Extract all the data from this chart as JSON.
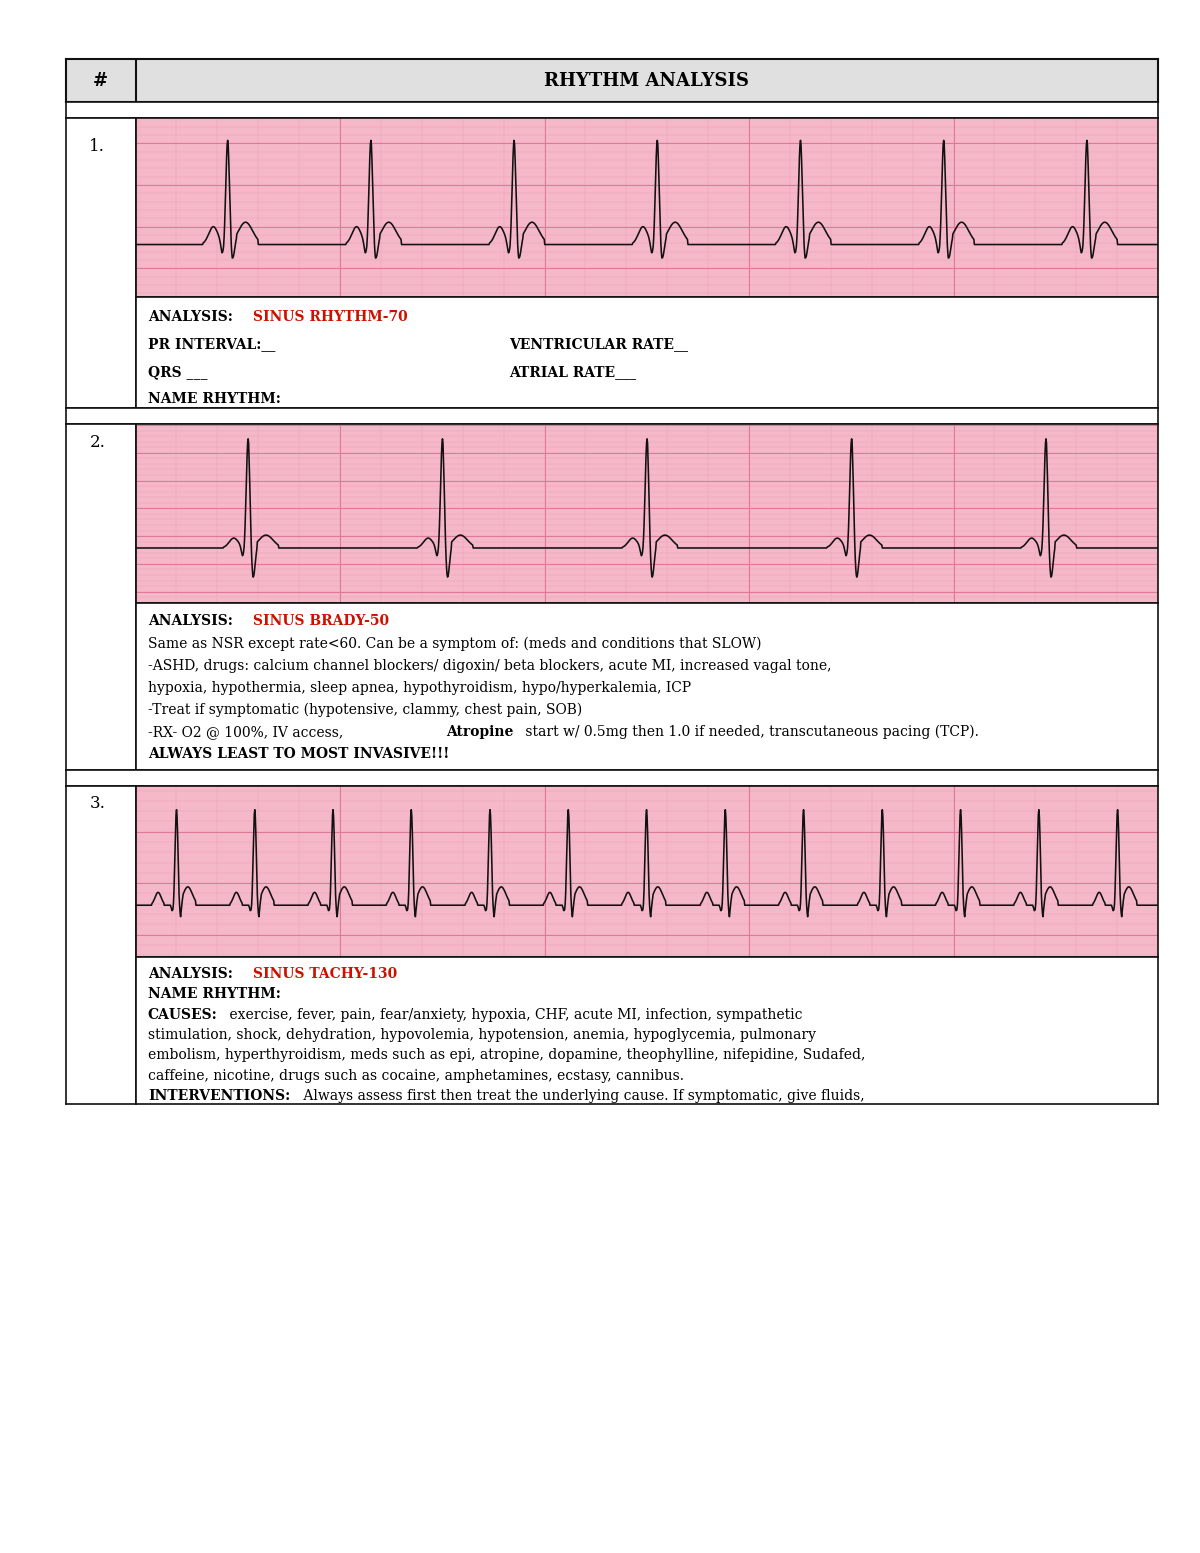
{
  "title": "RHYTHM ANALYSIS",
  "header_col_label": "#",
  "bg_color": "#ffffff",
  "ekg_bg": "#f5b8c8",
  "grid_minor_color": "#f0a0b8",
  "grid_major_color": "#e07898",
  "ekg_line_color": "#111111",
  "red_color": "#cc1100",
  "border_color": "#111111",
  "page_bg": "#f0f0f0",
  "header_bg": "#e0e0e0",
  "font_size_header": 13,
  "font_size_text": 10,
  "font_size_num": 12,
  "row1_analysis_red": "SINUS RHYTHM-70",
  "row1_lines": [
    [
      "bold",
      "ANALYSIS: ",
      "red",
      "SINUS RHYTHM-70"
    ],
    [
      "bold",
      "PR INTERVAL:__",
      "normal",
      "          VENTRICULAR RATE__"
    ],
    [
      "bold",
      "QRS ___",
      "normal",
      "                   ATRIAL RATE___"
    ],
    [
      "bold",
      "NAME RHYTHM:",
      "normal",
      ""
    ]
  ],
  "row2_analysis_red": "SINUS BRADY-50",
  "row2_lines": [
    [
      "bold",
      "ANALYSIS: ",
      "red",
      "SINUS BRADY-50"
    ],
    [
      "normal",
      "Same as NSR except rate<60. Can be a symptom of: (meds and conditions that SLOW)"
    ],
    [
      "normal",
      "-ASHD, drugs: calcium channel blockers/ digoxin/ beta blockers, acute MI, increased vagal tone,"
    ],
    [
      "normal",
      "hypoxia, hypothermia, sleep apnea, hypothyroidism, hypo/hyperkalemia, ICP"
    ],
    [
      "normal",
      "-Treat if symptomatic (hypotensive, clammy, chest pain, SOB)"
    ],
    [
      "normal",
      "-RX- O2 @ 100%, IV access, ",
      "bold",
      "Atropine",
      "normal",
      " start w/ 0.5mg then 1.0 if needed, transcutaneous pacing (TCP)."
    ],
    [
      "bold",
      "ALWAYS LEAST TO MOST INVASIVE!!!"
    ]
  ],
  "row3_analysis_red": "SINUS TACHY-130",
  "row3_lines": [
    [
      "bold",
      "ANALYSIS: ",
      "red",
      "SINUS TACHY-130"
    ],
    [
      "bold",
      "NAME RHYTHM:"
    ],
    [
      "bold",
      "CAUSES:",
      "normal",
      " exercise, fever, pain, fear/anxiety, hypoxia, CHF, acute MI, infection, sympathetic"
    ],
    [
      "normal",
      "stimulation, shock, dehydration, hypovolemia, hypotension, anemia, hypoglycemia, pulmonary"
    ],
    [
      "normal",
      "embolism, hyperthyroidism, meds such as epi, atropine, dopamine, theophylline, nifepidine, Sudafed,"
    ],
    [
      "normal",
      "caffeine, nicotine, drugs such as cocaine, amphetamines, ecstasy, cannibus."
    ],
    [
      "bold",
      "INTERVENTIONS:",
      "normal",
      " Always assess first then treat the underlying cause. If symptomatic, give fluids,"
    ]
  ]
}
